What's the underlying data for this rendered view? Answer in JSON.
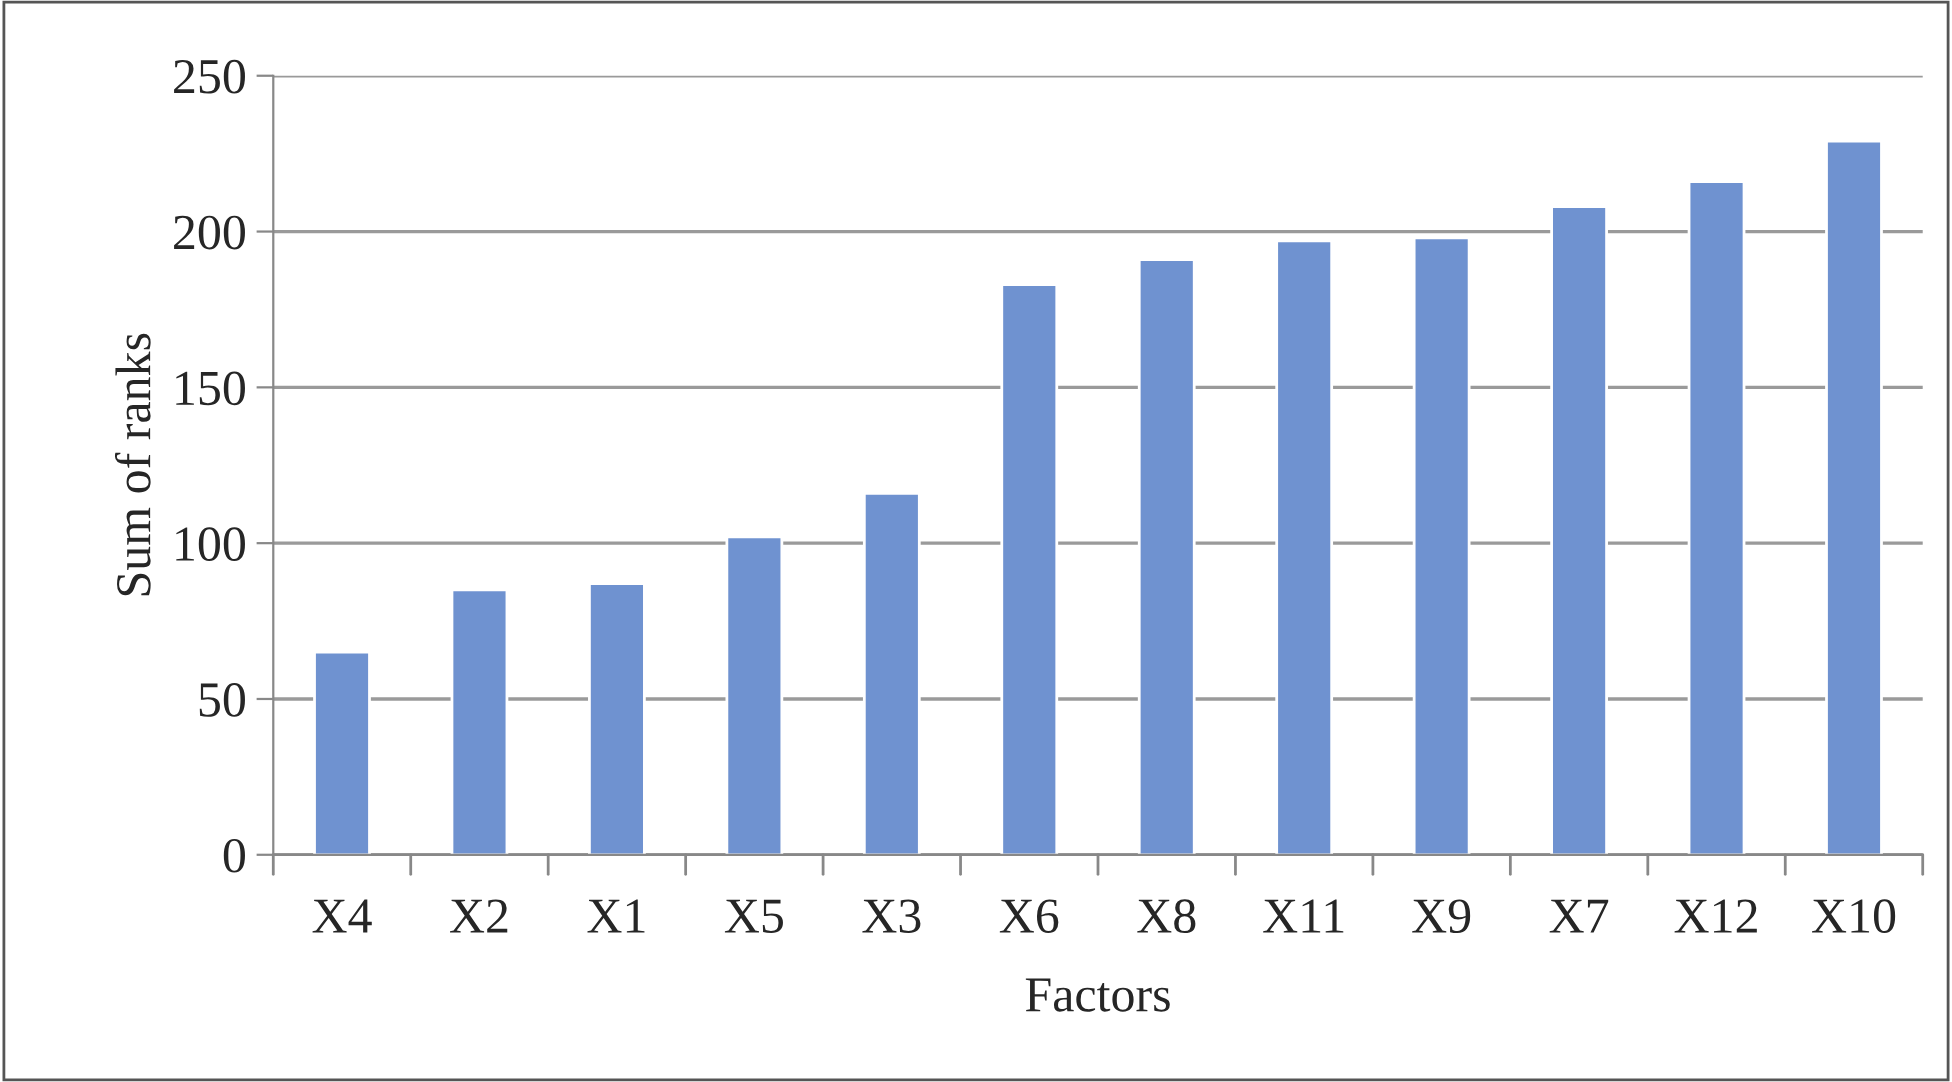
{
  "chart_data": {
    "type": "bar",
    "xlabel": "Factors",
    "ylabel": "Sum of ranks",
    "categories": [
      "X4",
      "X2",
      "X1",
      "X5",
      "X3",
      "X6",
      "X8",
      "X11",
      "X9",
      "X7",
      "X12",
      "X10"
    ],
    "values": [
      65,
      85,
      87,
      102,
      116,
      183,
      191,
      197,
      198,
      208,
      216,
      229
    ],
    "color": "#6f92d0",
    "ylim": [
      0,
      250
    ],
    "yticks": [
      0,
      50,
      100,
      150,
      200,
      250
    ],
    "grid": "y"
  }
}
